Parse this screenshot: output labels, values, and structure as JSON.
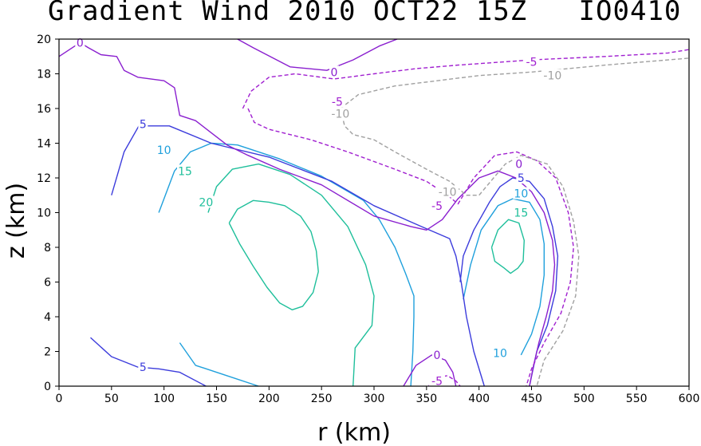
{
  "chart_data": {
    "type": "contour",
    "title": "Gradient Wind 2010 OCT22 15Z   IO0410",
    "xlabel": "r (km)",
    "ylabel": "z (km)",
    "xlim": [
      0,
      600
    ],
    "ylim": [
      0,
      20
    ],
    "xticks": [
      "0",
      "50",
      "100",
      "150",
      "200",
      "250",
      "300",
      "350",
      "400",
      "450",
      "500",
      "550",
      "600"
    ],
    "yticks": [
      "0",
      "2",
      "4",
      "6",
      "8",
      "10",
      "12",
      "14",
      "16",
      "18",
      "20"
    ],
    "levels": [
      {
        "value": 20,
        "color": "#1fbf9b",
        "dash": false
      },
      {
        "value": 15,
        "color": "#1fbf9b",
        "dash": false
      },
      {
        "value": 10,
        "color": "#1fa0dc",
        "dash": false
      },
      {
        "value": 5,
        "color": "#3c3cdc",
        "dash": false
      },
      {
        "value": 0,
        "color": "#8a1fcf",
        "dash": false
      },
      {
        "value": -5,
        "color": "#a01fd0",
        "dash": true
      },
      {
        "value": -10,
        "color": "#a0a0a0",
        "dash": true
      }
    ],
    "contours": [
      {
        "level": 20,
        "points": [
          [
            162,
            9.4
          ],
          [
            170,
            10.2
          ],
          [
            185,
            10.7
          ],
          [
            200,
            10.6
          ],
          [
            215,
            10.4
          ],
          [
            230,
            9.8
          ],
          [
            240,
            8.9
          ],
          [
            245,
            7.8
          ],
          [
            247,
            6.6
          ],
          [
            242,
            5.4
          ],
          [
            232,
            4.6
          ],
          [
            222,
            4.4
          ],
          [
            210,
            4.8
          ],
          [
            198,
            5.7
          ],
          [
            185,
            6.9
          ],
          [
            172,
            8.2
          ],
          [
            162,
            9.4
          ]
        ]
      },
      {
        "level": 15,
        "points": [
          [
            142,
            10.0
          ],
          [
            150,
            11.5
          ],
          [
            165,
            12.5
          ],
          [
            190,
            12.8
          ],
          [
            220,
            12.2
          ],
          [
            250,
            11.0
          ],
          [
            275,
            9.2
          ],
          [
            292,
            7.0
          ],
          [
            300,
            5.2
          ],
          [
            298,
            3.5
          ],
          [
            282,
            2.2
          ],
          [
            280,
            0
          ]
        ]
      },
      {
        "level": 15,
        "points": [
          [
            412,
            8.0
          ],
          [
            418,
            9.0
          ],
          [
            428,
            9.6
          ],
          [
            438,
            9.4
          ],
          [
            443,
            8.4
          ],
          [
            442,
            7.2
          ],
          [
            437,
            6.8
          ],
          [
            430,
            6.5
          ],
          [
            424,
            6.8
          ],
          [
            415,
            7.2
          ],
          [
            412,
            8.0
          ]
        ]
      },
      {
        "level": 10,
        "points": [
          [
            95,
            10.0
          ],
          [
            110,
            12.4
          ],
          [
            125,
            13.5
          ],
          [
            145,
            14.0
          ],
          [
            170,
            13.9
          ],
          [
            210,
            13.1
          ],
          [
            250,
            12.1
          ],
          [
            290,
            10.7
          ],
          [
            305,
            9.6
          ],
          [
            320,
            8.0
          ],
          [
            330,
            6.5
          ],
          [
            338,
            5.2
          ],
          [
            338,
            4.0
          ],
          [
            337,
            2.0
          ],
          [
            335,
            0
          ]
        ]
      },
      {
        "level": 10,
        "points": [
          [
            115,
            2.5
          ],
          [
            130,
            1.2
          ],
          [
            160,
            0.6
          ],
          [
            190,
            0
          ]
        ]
      },
      {
        "level": 10,
        "points": [
          [
            385,
            5.0
          ],
          [
            392,
            7.0
          ],
          [
            402,
            9.0
          ],
          [
            418,
            10.4
          ],
          [
            432,
            10.8
          ],
          [
            448,
            10.6
          ],
          [
            458,
            9.6
          ],
          [
            462,
            8.2
          ],
          [
            462,
            6.4
          ],
          [
            458,
            4.6
          ],
          [
            450,
            3.0
          ],
          [
            440,
            1.8
          ]
        ]
      },
      {
        "level": 5,
        "points": [
          [
            50,
            11.0
          ],
          [
            62,
            13.5
          ],
          [
            76,
            15.0
          ],
          [
            105,
            15.0
          ],
          [
            145,
            14.0
          ],
          [
            200,
            13.2
          ],
          [
            260,
            11.8
          ],
          [
            300,
            10.4
          ],
          [
            345,
            9.2
          ],
          [
            372,
            8.5
          ],
          [
            378,
            7.5
          ],
          [
            383,
            6.0
          ],
          [
            388,
            4.0
          ],
          [
            395,
            2.0
          ],
          [
            405,
            0
          ]
        ]
      },
      {
        "level": 5,
        "points": [
          [
            30,
            2.8
          ],
          [
            50,
            1.7
          ],
          [
            75,
            1.1
          ],
          [
            95,
            1.0
          ],
          [
            115,
            0.8
          ],
          [
            140,
            0
          ]
        ]
      },
      {
        "level": 5,
        "points": [
          [
            382,
            6.0
          ],
          [
            385,
            7.5
          ],
          [
            395,
            9.0
          ],
          [
            410,
            10.6
          ],
          [
            420,
            11.5
          ],
          [
            432,
            12.0
          ],
          [
            448,
            11.8
          ],
          [
            462,
            10.8
          ],
          [
            470,
            9.2
          ],
          [
            475,
            7.5
          ],
          [
            473,
            5.5
          ],
          [
            465,
            3.5
          ],
          [
            455,
            2.0
          ],
          [
            448,
            0
          ]
        ]
      },
      {
        "level": 0,
        "points": [
          [
            0,
            19.0
          ],
          [
            20,
            19.8
          ],
          [
            28,
            19.5
          ],
          [
            40,
            19.1
          ],
          [
            55,
            19.0
          ],
          [
            62,
            18.2
          ],
          [
            75,
            17.8
          ],
          [
            100,
            17.6
          ],
          [
            110,
            17.2
          ],
          [
            115,
            15.6
          ],
          [
            130,
            15.3
          ],
          [
            145,
            14.6
          ],
          [
            160,
            13.9
          ],
          [
            180,
            13.3
          ],
          [
            210,
            12.5
          ],
          [
            250,
            11.6
          ],
          [
            300,
            9.8
          ],
          [
            335,
            9.2
          ],
          [
            350,
            9.0
          ],
          [
            365,
            9.6
          ],
          [
            380,
            10.8
          ],
          [
            400,
            12.0
          ],
          [
            418,
            12.4
          ],
          [
            435,
            12.0
          ],
          [
            450,
            11.2
          ],
          [
            462,
            10.0
          ],
          [
            470,
            8.4
          ],
          [
            472,
            7.0
          ],
          [
            470,
            5.5
          ],
          [
            464,
            4.0
          ],
          [
            457,
            2.5
          ],
          [
            452,
            1.2
          ],
          [
            448,
            0
          ]
        ]
      },
      {
        "level": 0,
        "points": [
          [
            170,
            20.0
          ],
          [
            185,
            19.5
          ],
          [
            220,
            18.4
          ],
          [
            255,
            18.2
          ],
          [
            280,
            18.8
          ],
          [
            305,
            19.6
          ],
          [
            322,
            20.0
          ]
        ]
      },
      {
        "level": 0,
        "points": [
          [
            328,
            0
          ],
          [
            340,
            1.2
          ],
          [
            355,
            1.8
          ],
          [
            368,
            1.5
          ],
          [
            375,
            0.8
          ],
          [
            378,
            0
          ]
        ]
      },
      {
        "level": -5,
        "points": [
          [
            175,
            16.0
          ],
          [
            183,
            17.0
          ],
          [
            200,
            17.8
          ],
          [
            225,
            18.0
          ],
          [
            262,
            17.7
          ],
          [
            300,
            18.0
          ],
          [
            340,
            18.3
          ],
          [
            380,
            18.5
          ],
          [
            450,
            18.8
          ],
          [
            520,
            19.0
          ],
          [
            580,
            19.2
          ],
          [
            600,
            19.4
          ]
        ]
      },
      {
        "level": -5,
        "points": [
          [
            180,
            16.0
          ],
          [
            186,
            15.2
          ],
          [
            200,
            14.8
          ],
          [
            240,
            14.2
          ],
          [
            275,
            13.5
          ],
          [
            320,
            12.5
          ],
          [
            350,
            11.8
          ],
          [
            370,
            11.0
          ],
          [
            380,
            10.5
          ],
          [
            395,
            12.0
          ],
          [
            415,
            13.3
          ],
          [
            436,
            13.5
          ],
          [
            455,
            13.0
          ],
          [
            473,
            12.0
          ],
          [
            485,
            10.0
          ],
          [
            490,
            8.0
          ],
          [
            487,
            6.0
          ],
          [
            478,
            4.2
          ],
          [
            462,
            2.5
          ],
          [
            450,
            1.0
          ],
          [
            445,
            0
          ]
        ]
      },
      {
        "level": -5,
        "points": [
          [
            352,
            0
          ],
          [
            358,
            0.5
          ],
          [
            370,
            0.6
          ],
          [
            378,
            0.3
          ],
          [
            382,
            0
          ]
        ]
      },
      {
        "level": -10,
        "points": [
          [
            268,
            16.0
          ],
          [
            285,
            16.8
          ],
          [
            320,
            17.3
          ],
          [
            360,
            17.6
          ],
          [
            400,
            17.9
          ],
          [
            450,
            18.1
          ],
          [
            520,
            18.5
          ],
          [
            600,
            18.9
          ]
        ]
      },
      {
        "level": -10,
        "points": [
          [
            268,
            16.0
          ],
          [
            272,
            15.0
          ],
          [
            280,
            14.5
          ],
          [
            300,
            14.2
          ],
          [
            320,
            13.5
          ],
          [
            350,
            12.5
          ],
          [
            372,
            11.8
          ],
          [
            388,
            11.0
          ],
          [
            400,
            11.0
          ],
          [
            425,
            12.8
          ],
          [
            440,
            13.3
          ],
          [
            465,
            12.8
          ],
          [
            480,
            11.5
          ],
          [
            490,
            9.5
          ],
          [
            495,
            7.5
          ],
          [
            492,
            5.2
          ],
          [
            480,
            3.2
          ],
          [
            462,
            1.5
          ],
          [
            455,
            0
          ]
        ]
      }
    ],
    "contour_labels": [
      {
        "text": "0",
        "r": 20,
        "z": 19.8,
        "color": "#8a1fcf"
      },
      {
        "text": "0",
        "r": 262,
        "z": 18.1,
        "color": "#8a1fcf"
      },
      {
        "text": "-5",
        "r": 450,
        "z": 18.7,
        "color": "#a01fd0"
      },
      {
        "text": "-10",
        "r": 470,
        "z": 17.9,
        "color": "#a0a0a0"
      },
      {
        "text": "-5",
        "r": 265,
        "z": 16.4,
        "color": "#a01fd0"
      },
      {
        "text": "-10",
        "r": 268,
        "z": 15.7,
        "color": "#a0a0a0"
      },
      {
        "text": "5",
        "r": 80,
        "z": 15.1,
        "color": "#3c3cdc"
      },
      {
        "text": "10",
        "r": 100,
        "z": 13.6,
        "color": "#1fa0dc"
      },
      {
        "text": "15",
        "r": 120,
        "z": 12.4,
        "color": "#1fbf9b"
      },
      {
        "text": "20",
        "r": 140,
        "z": 10.6,
        "color": "#1fbf9b"
      },
      {
        "text": "0",
        "r": 438,
        "z": 12.8,
        "color": "#8a1fcf"
      },
      {
        "text": "5",
        "r": 440,
        "z": 12.0,
        "color": "#3c3cdc"
      },
      {
        "text": "10",
        "r": 440,
        "z": 11.1,
        "color": "#1fa0dc"
      },
      {
        "text": "15",
        "r": 440,
        "z": 10.0,
        "color": "#1fbf9b"
      },
      {
        "text": "-10",
        "r": 370,
        "z": 11.2,
        "color": "#a0a0a0"
      },
      {
        "text": "-5",
        "r": 360,
        "z": 10.4,
        "color": "#a01fd0"
      },
      {
        "text": "10",
        "r": 420,
        "z": 1.9,
        "color": "#1fa0dc"
      },
      {
        "text": "0",
        "r": 360,
        "z": 1.8,
        "color": "#8a1fcf"
      },
      {
        "text": "-5",
        "r": 360,
        "z": 0.3,
        "color": "#a01fd0"
      },
      {
        "text": "5",
        "r": 80,
        "z": 1.1,
        "color": "#3c3cdc"
      }
    ]
  }
}
